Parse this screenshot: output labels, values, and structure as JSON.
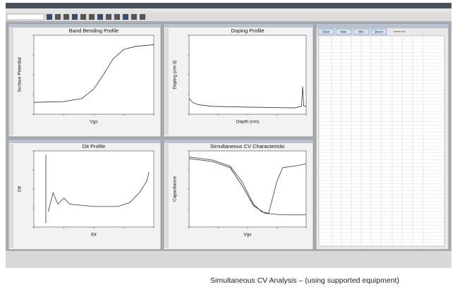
{
  "panels": [
    {
      "title": "Band Bending Profile",
      "x_label": "Vgs",
      "y_label": "Surface Potential"
    },
    {
      "title": "Doping Profile",
      "x_label": "Depth (nm)",
      "y_label": "Doping (cm-3)"
    },
    {
      "title": "Dit Profile",
      "x_label": "Eit",
      "y_label": "Dit"
    },
    {
      "title": "Simultaneous CV Characteristic",
      "x_label": "Vgs",
      "y_label": "Capacitance"
    }
  ],
  "table_window": {
    "buttons": [
      "Clear",
      "Max",
      "Min",
      "Direct"
    ]
  },
  "caption": "Simultaneous CV Analysis – (using supported equipment)"
}
